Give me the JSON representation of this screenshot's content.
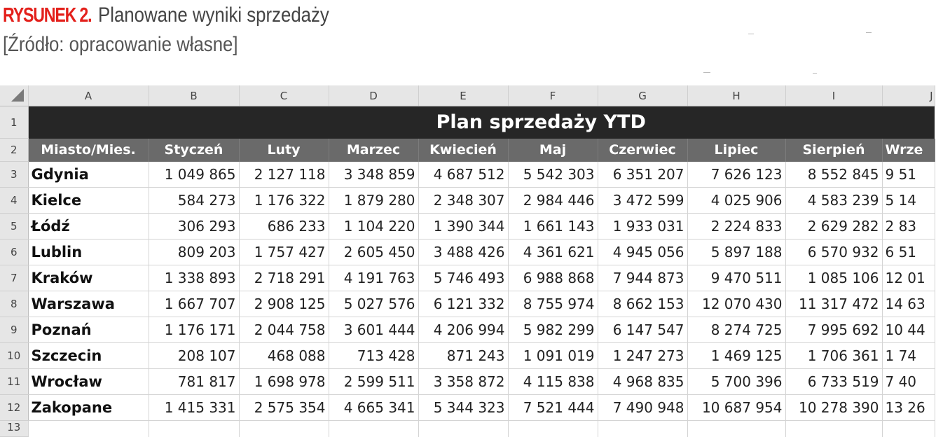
{
  "caption": {
    "label": "RYSUNEK 2.",
    "title": "Planowane wyniki sprzedaży",
    "source": "[Źródło: opracowanie własne]"
  },
  "sheet": {
    "column_letters": [
      "A",
      "B",
      "C",
      "D",
      "E",
      "F",
      "G",
      "H",
      "I",
      "J"
    ],
    "row_numbers": [
      "1",
      "2",
      "3",
      "4",
      "5",
      "6",
      "7",
      "8",
      "9",
      "10",
      "11",
      "12",
      "13"
    ],
    "title": "Plan sprzedaży YTD",
    "headers": [
      "Miasto/Mies.",
      "Styczeń",
      "Luty",
      "Marzec",
      "Kwiecień",
      "Maj",
      "Czerwiec",
      "Lipiec",
      "Sierpień",
      "Wrze"
    ],
    "rows": [
      [
        "Gdynia",
        "1 049 865",
        "2 127 118",
        "3 348 859",
        "4 687 512",
        "5 542 303",
        "6 351 207",
        "7 626 123",
        "8 552 845",
        "9 51"
      ],
      [
        "Kielce",
        "584 273",
        "1 176 322",
        "1 879 280",
        "2 348 307",
        "2 984 446",
        "3 472 599",
        "4 025 906",
        "4 583 239",
        "5 14"
      ],
      [
        "Łódź",
        "306 293",
        "686 233",
        "1 104 220",
        "1 390 344",
        "1 661 143",
        "1 933 031",
        "2 224 833",
        "2 629 282",
        "2 83"
      ],
      [
        "Lublin",
        "809 203",
        "1 757 427",
        "2 605 450",
        "3 488 426",
        "4 361 621",
        "4 945 056",
        "5 897 188",
        "6 570 932",
        "6 51"
      ],
      [
        "Kraków",
        "1 338 893",
        "2 718 291",
        "4 191 763",
        "5 746 493",
        "6 988 868",
        "7 944 873",
        "9 470 511",
        "1 085 106",
        "12 01"
      ],
      [
        "Warszawa",
        "1 667 707",
        "2 908 125",
        "5 027 576",
        "6 121 332",
        "8 755 974",
        "8 662 153",
        "12 070 430",
        "11 317 472",
        "14 63"
      ],
      [
        "Poznań",
        "1 176 171",
        "2 044 758",
        "3 601 444",
        "4 206 994",
        "5 982 299",
        "6 147 547",
        "8 274 725",
        "7 995 692",
        "10 44"
      ],
      [
        "Szczecin",
        "208 107",
        "468 088",
        "713 428",
        "871 243",
        "1 091 019",
        "1 247 273",
        "1 469 125",
        "1 706 361",
        "1 74"
      ],
      [
        "Wrocław",
        "781 817",
        "1 698 978",
        "2 599 511",
        "3 358 872",
        "4 115 838",
        "4 968 835",
        "5 700 396",
        "6 733 519",
        "7 40"
      ],
      [
        "Zakopane",
        "1 415 331",
        "2 575 354",
        "4 665 341",
        "5 344 323",
        "7 521 444",
        "7 490 948",
        "10 687 954",
        "10 278 390",
        "13 26"
      ]
    ]
  },
  "colors": {
    "caption_label": "#e3201b",
    "title_band": "#262626",
    "header_band": "#6a6a6a",
    "gridline": "#d4d4d4",
    "heading_bg": "#e6e6e6"
  }
}
